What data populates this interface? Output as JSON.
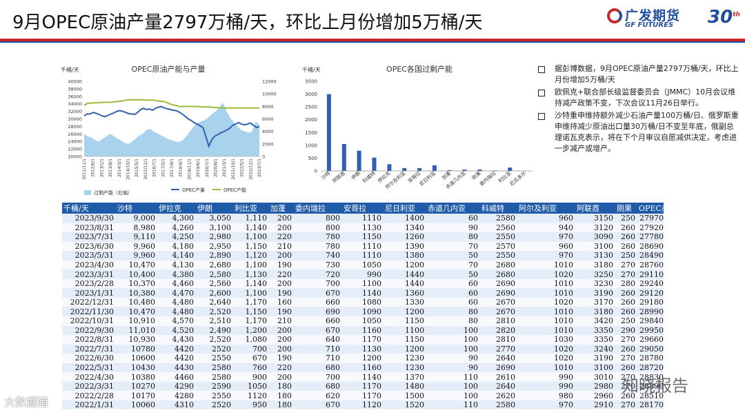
{
  "title": "9月OPEC原油产量2797万桶/天，环比上月份增加5万桶/天",
  "logo": {
    "brand": "广发期货",
    "brand_en": "GF FUTURES",
    "anniv": "30",
    "anniv_sup": "th"
  },
  "bullets": [
    "据彭博数据，9月OPEC原油产量2797万桶/天，环比上月份增加5万桶/天",
    "欧佩克+联合部长级监督委员会（JMMC）10月会议维持减产政策不变，下次会议11月26日举行。",
    "沙特重申维持额外减少石油产量100万桶/日、俄罗斯重申维持减少原油出口量30万桶/日不变至年底，俄副总理诺瓦克表示，将在下个月审议自愿减供决定，考虑进一步减产或增产。"
  ],
  "watermarks": {
    "right": "知晓报告",
    "left": "大数据猎"
  },
  "chart_data": [
    {
      "type": "area",
      "title": "OPEC原油产能与产量",
      "left_unit": "千桶/天",
      "left_ylim": [
        20000,
        40000
      ],
      "left_ticks": [
        "40000",
        "38000",
        "36000",
        "34000",
        "32000",
        "30000",
        "28000",
        "26000",
        "24000",
        "22000",
        "20000"
      ],
      "right_ylim": [
        0,
        12000
      ],
      "right_ticks": [
        "12000",
        "10000",
        "8000",
        "6000",
        "4000",
        "2000",
        "0"
      ],
      "x_ticks": [
        "2011/11/1",
        "2012/6/1",
        "2013/1/1",
        "2013/8/1",
        "2014/3/1",
        "2014/10/1",
        "2015/5/1",
        "2015/12/1",
        "2016/7/1",
        "2017/2/1",
        "2017/9/1",
        "2018/4/1",
        "2018/11/1",
        "2019/6/1",
        "2020/1/1",
        "2020/8/1",
        "2021/3/1",
        "2021/10/1",
        "2022/5/1",
        "2022/12/1",
        "2023/7/1"
      ],
      "legend": [
        "过剩产能（右轴）",
        "OPEC产量",
        "OPEC产能"
      ],
      "series": [
        {
          "name": "过剩产能（右轴）",
          "values": [
            3600,
            3200,
            3000,
            2600,
            2400,
            2800,
            3200,
            3600,
            3300,
            2900,
            2600,
            2200,
            2000,
            2300,
            2800,
            3300,
            3600,
            4200,
            4400,
            4000,
            3700,
            3400,
            3100,
            2800,
            2600,
            2400,
            2300,
            2600,
            3200,
            4000,
            4800,
            5300,
            5600,
            5800,
            6200,
            6800,
            7200,
            7800,
            8600,
            7200,
            6200,
            5400,
            4800,
            4200,
            4000,
            3800,
            4000,
            5600,
            5000
          ]
        },
        {
          "name": "OPEC产量",
          "values": [
            30800,
            31300,
            31300,
            31700,
            31500,
            31200,
            30800,
            30600,
            30900,
            31300,
            31600,
            32000,
            32200,
            32000,
            31700,
            31400,
            31300,
            31200,
            31700,
            32500,
            32800,
            32500,
            32600,
            32300,
            32800,
            33100,
            33300,
            32900,
            32700,
            32500,
            32300,
            32200,
            31800,
            31300,
            30700,
            30000,
            29600,
            29000,
            28600,
            28200,
            27700,
            25300,
            22700,
            24500,
            25400,
            25800,
            26300,
            26600,
            27000,
            27500,
            28300,
            28600,
            29000,
            28600,
            28400,
            28600,
            28900,
            28300,
            27700,
            27970
          ]
        },
        {
          "name": "OPEC产能",
          "values": [
            33600,
            34200,
            34200,
            34300,
            34300,
            34400,
            34400,
            34400,
            34500,
            34600,
            34700,
            34900,
            35100,
            35100,
            35100,
            35100,
            35100,
            35000,
            35000,
            35000,
            34800,
            34700,
            34600,
            34200,
            33800,
            33600,
            33300,
            33300,
            33300,
            33300,
            33300,
            33300,
            33200,
            33200,
            33200,
            33100,
            33000,
            33000,
            32900,
            32900,
            32900,
            32900,
            32900,
            32900,
            32900,
            32900,
            32900,
            32900,
            32900
          ]
        }
      ]
    },
    {
      "type": "bar",
      "title": "OPEC各国过剩产能",
      "unit": "千桶/天",
      "ylim": [
        0,
        3500
      ],
      "y_ticks": [
        "3500",
        "3000",
        "2500",
        "2000",
        "1500",
        "1000",
        "500",
        "0"
      ],
      "categories": [
        "沙特",
        "阿联酋",
        "伊朗",
        "科威特",
        "伊拉克",
        "阿尔及利亚",
        "安哥拉",
        "尼日利亚",
        "加蓬",
        "赤道几内亚",
        "刚果",
        "委内瑞拉",
        "利比亚",
        "厄瓜多尔"
      ],
      "values": [
        3000,
        1050,
        790,
        520,
        260,
        110,
        110,
        220,
        30,
        50,
        60,
        20,
        130,
        0
      ]
    }
  ],
  "table": {
    "headers": [
      "千桶/天",
      "沙特",
      "伊拉克",
      "伊朗",
      "利比亚",
      "加蓬",
      "委内瑞拉",
      "安哥拉",
      "尼日利亚",
      "赤道几内亚",
      "科威特",
      "阿尔及利亚",
      "阿联酋",
      "刚果",
      "OPEC产量"
    ],
    "rows": [
      [
        "2023/9/30",
        "9,000",
        "4,300",
        "3,050",
        "1,110",
        "200",
        "800",
        "1110",
        "1400",
        "60",
        "2580",
        "960",
        "3150",
        "250",
        "27970"
      ],
      [
        "2023/8/31",
        "8,980",
        "4,260",
        "3,100",
        "1,140",
        "200",
        "800",
        "1130",
        "1340",
        "90",
        "2560",
        "940",
        "3120",
        "260",
        "27920"
      ],
      [
        "2023/7/31",
        "9,110",
        "4,250",
        "2,980",
        "1,100",
        "220",
        "780",
        "1150",
        "1260",
        "80",
        "2550",
        "970",
        "3090",
        "260",
        "27780"
      ],
      [
        "2023/6/30",
        "9,960",
        "4,180",
        "2,950",
        "1,150",
        "210",
        "780",
        "1110",
        "1390",
        "70",
        "2570",
        "960",
        "3100",
        "260",
        "28690"
      ],
      [
        "2023/5/31",
        "9,960",
        "4,140",
        "2,890",
        "1,120",
        "200",
        "740",
        "1110",
        "1380",
        "50",
        "2550",
        "970",
        "3130",
        "250",
        "28490"
      ],
      [
        "2023/4/30",
        "10,470",
        "4,130",
        "2,680",
        "1,100",
        "190",
        "730",
        "1050",
        "1200",
        "70",
        "2680",
        "1010",
        "3180",
        "270",
        "28760"
      ],
      [
        "2023/3/31",
        "10,400",
        "4,380",
        "2,580",
        "1,130",
        "220",
        "720",
        "990",
        "1440",
        "50",
        "2680",
        "1020",
        "3250",
        "270",
        "29110"
      ],
      [
        "2023/2/28",
        "10,370",
        "4,460",
        "2,560",
        "1,140",
        "200",
        "700",
        "1100",
        "1440",
        "60",
        "2690",
        "1010",
        "3230",
        "280",
        "29240"
      ],
      [
        "2023/1/31",
        "10,380",
        "4,470",
        "2,600",
        "1,100",
        "190",
        "670",
        "1140",
        "1360",
        "60",
        "2690",
        "1010",
        "3190",
        "260",
        "29120"
      ],
      [
        "2022/12/31",
        "10,480",
        "4,480",
        "2,640",
        "1,170",
        "160",
        "660",
        "1080",
        "1330",
        "60",
        "2670",
        "1020",
        "3170",
        "260",
        "29180"
      ],
      [
        "2022/11/30",
        "10,470",
        "4,480",
        "2,520",
        "1,150",
        "190",
        "690",
        "1090",
        "1200",
        "80",
        "2670",
        "1010",
        "3180",
        "260",
        "28990"
      ],
      [
        "2022/10/31",
        "10,910",
        "4,570",
        "2,510",
        "1,170",
        "210",
        "660",
        "1050",
        "1150",
        "80",
        "2810",
        "1010",
        "3420",
        "250",
        "29840"
      ],
      [
        "2022/9/30",
        "11,010",
        "4,520",
        "2,490",
        "1,200",
        "200",
        "670",
        "1160",
        "1100",
        "100",
        "2820",
        "1010",
        "3350",
        "290",
        "29950"
      ],
      [
        "2022/8/31",
        "10,930",
        "4,430",
        "2,520",
        "1,080",
        "200",
        "640",
        "1170",
        "1150",
        "100",
        "2810",
        "1030",
        "3350",
        "270",
        "29660"
      ],
      [
        "2022/7/31",
        "10780",
        "4420",
        "2520",
        "700",
        "200",
        "710",
        "1130",
        "1200",
        "100",
        "2770",
        "1020",
        "3240",
        "260",
        "29050"
      ],
      [
        "2022/6/30",
        "10600",
        "4420",
        "2550",
        "670",
        "190",
        "710",
        "1200",
        "1230",
        "90",
        "2640",
        "1020",
        "3190",
        "270",
        "28780"
      ],
      [
        "2022/5/31",
        "10430",
        "4430",
        "2580",
        "760",
        "220",
        "680",
        "1160",
        "1230",
        "90",
        "2690",
        "1010",
        "3100",
        "260",
        "28720"
      ],
      [
        "2022/4/30",
        "10380",
        "4460",
        "2580",
        "900",
        "200",
        "700",
        "1140",
        "1370",
        "110",
        "2610",
        "990",
        "3010",
        "270",
        "28830"
      ],
      [
        "2022/3/31",
        "10270",
        "4290",
        "2590",
        "1050",
        "180",
        "680",
        "1170",
        "1480",
        "100",
        "2640",
        "990",
        "2980",
        "270",
        "28890"
      ],
      [
        "2022/2/28",
        "10170",
        "4280",
        "2550",
        "1120",
        "180",
        "620",
        "1170",
        "1500",
        "100",
        "2620",
        "980",
        "2960",
        "260",
        "28510"
      ],
      [
        "2022/1/31",
        "10060",
        "4310",
        "2520",
        "950",
        "180",
        "670",
        "1120",
        "1520",
        "110",
        "2580",
        "970",
        "2910",
        "270",
        "28170"
      ]
    ]
  }
}
